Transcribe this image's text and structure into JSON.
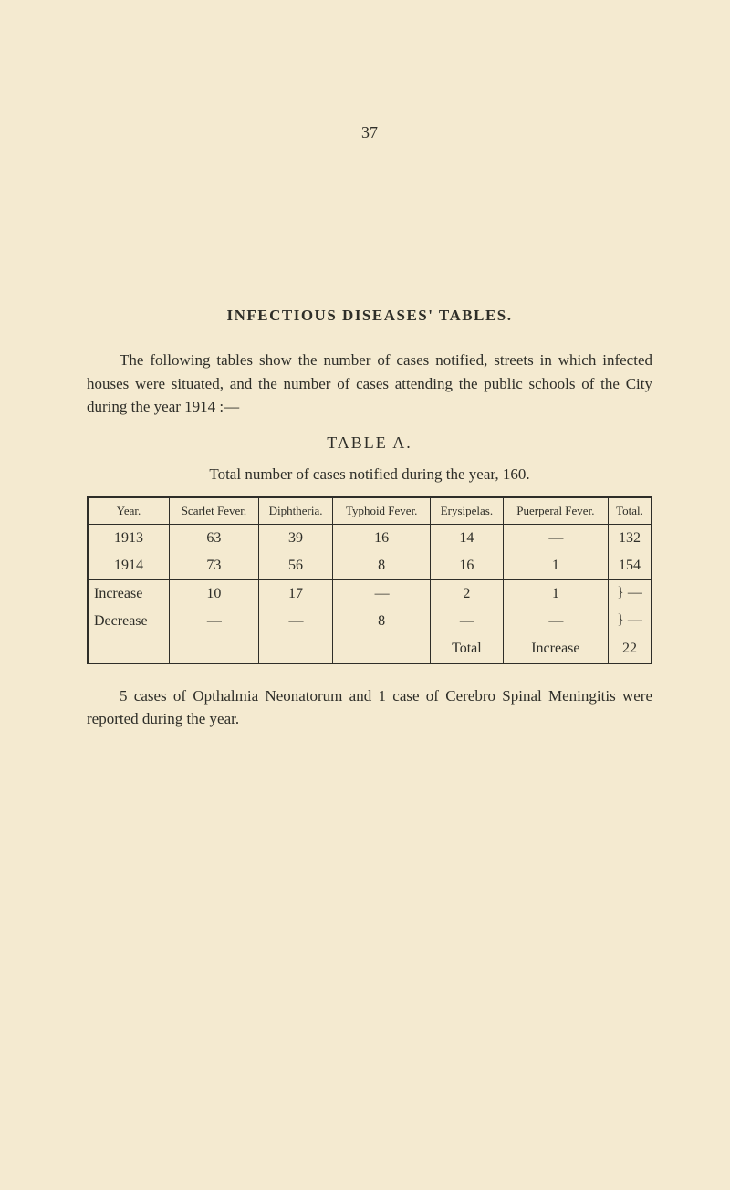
{
  "page_number": "37",
  "section_title": "INFECTIOUS  DISEASES'  TABLES.",
  "intro_paragraph": "The following tables show the number of cases notified, streets in which infected houses were situated, and the number of cases attending the public schools of the City during the year 1914 :—",
  "table": {
    "label": "TABLE  A.",
    "caption": "Total number of cases notified during the year, 160.",
    "columns": [
      "Year.",
      "Scarlet Fever.",
      "Diphtheria.",
      "Typhoid Fever.",
      "Erysipelas.",
      "Puerperal Fever.",
      "Total."
    ],
    "rows_data": [
      {
        "year": "1913",
        "scarlet": "63",
        "diphtheria": "39",
        "typhoid": "16",
        "erysipelas": "14",
        "puerperal": "—",
        "total": "132"
      },
      {
        "year": "1914",
        "scarlet": "73",
        "diphtheria": "56",
        "typhoid": "8",
        "erysipelas": "16",
        "puerperal": "1",
        "total": "154"
      }
    ],
    "rows_change": [
      {
        "label": "Increase",
        "scarlet": "10",
        "diphtheria": "17",
        "typhoid": "—",
        "erysipelas": "2",
        "puerperal": "1",
        "total": "} —"
      },
      {
        "label": "Decrease",
        "scarlet": "—",
        "diphtheria": "—",
        "typhoid": "8",
        "erysipelas": "—",
        "puerperal": "—",
        "total": "} —"
      }
    ],
    "total_row": {
      "col5": "Total",
      "col6": "Increase",
      "col7": "22"
    }
  },
  "footnote": "5 cases of Opthalmia Neonatorum and 1 case of Cerebro Spinal Meningitis were reported during the year.",
  "colors": {
    "background": "#f4ead0",
    "text": "#2e2e28",
    "border": "#2e2e28"
  },
  "typography": {
    "body_fontsize": 17,
    "table_header_fontsize": 13,
    "table_cell_fontsize": 16,
    "title_letterspacing": 1.5
  }
}
